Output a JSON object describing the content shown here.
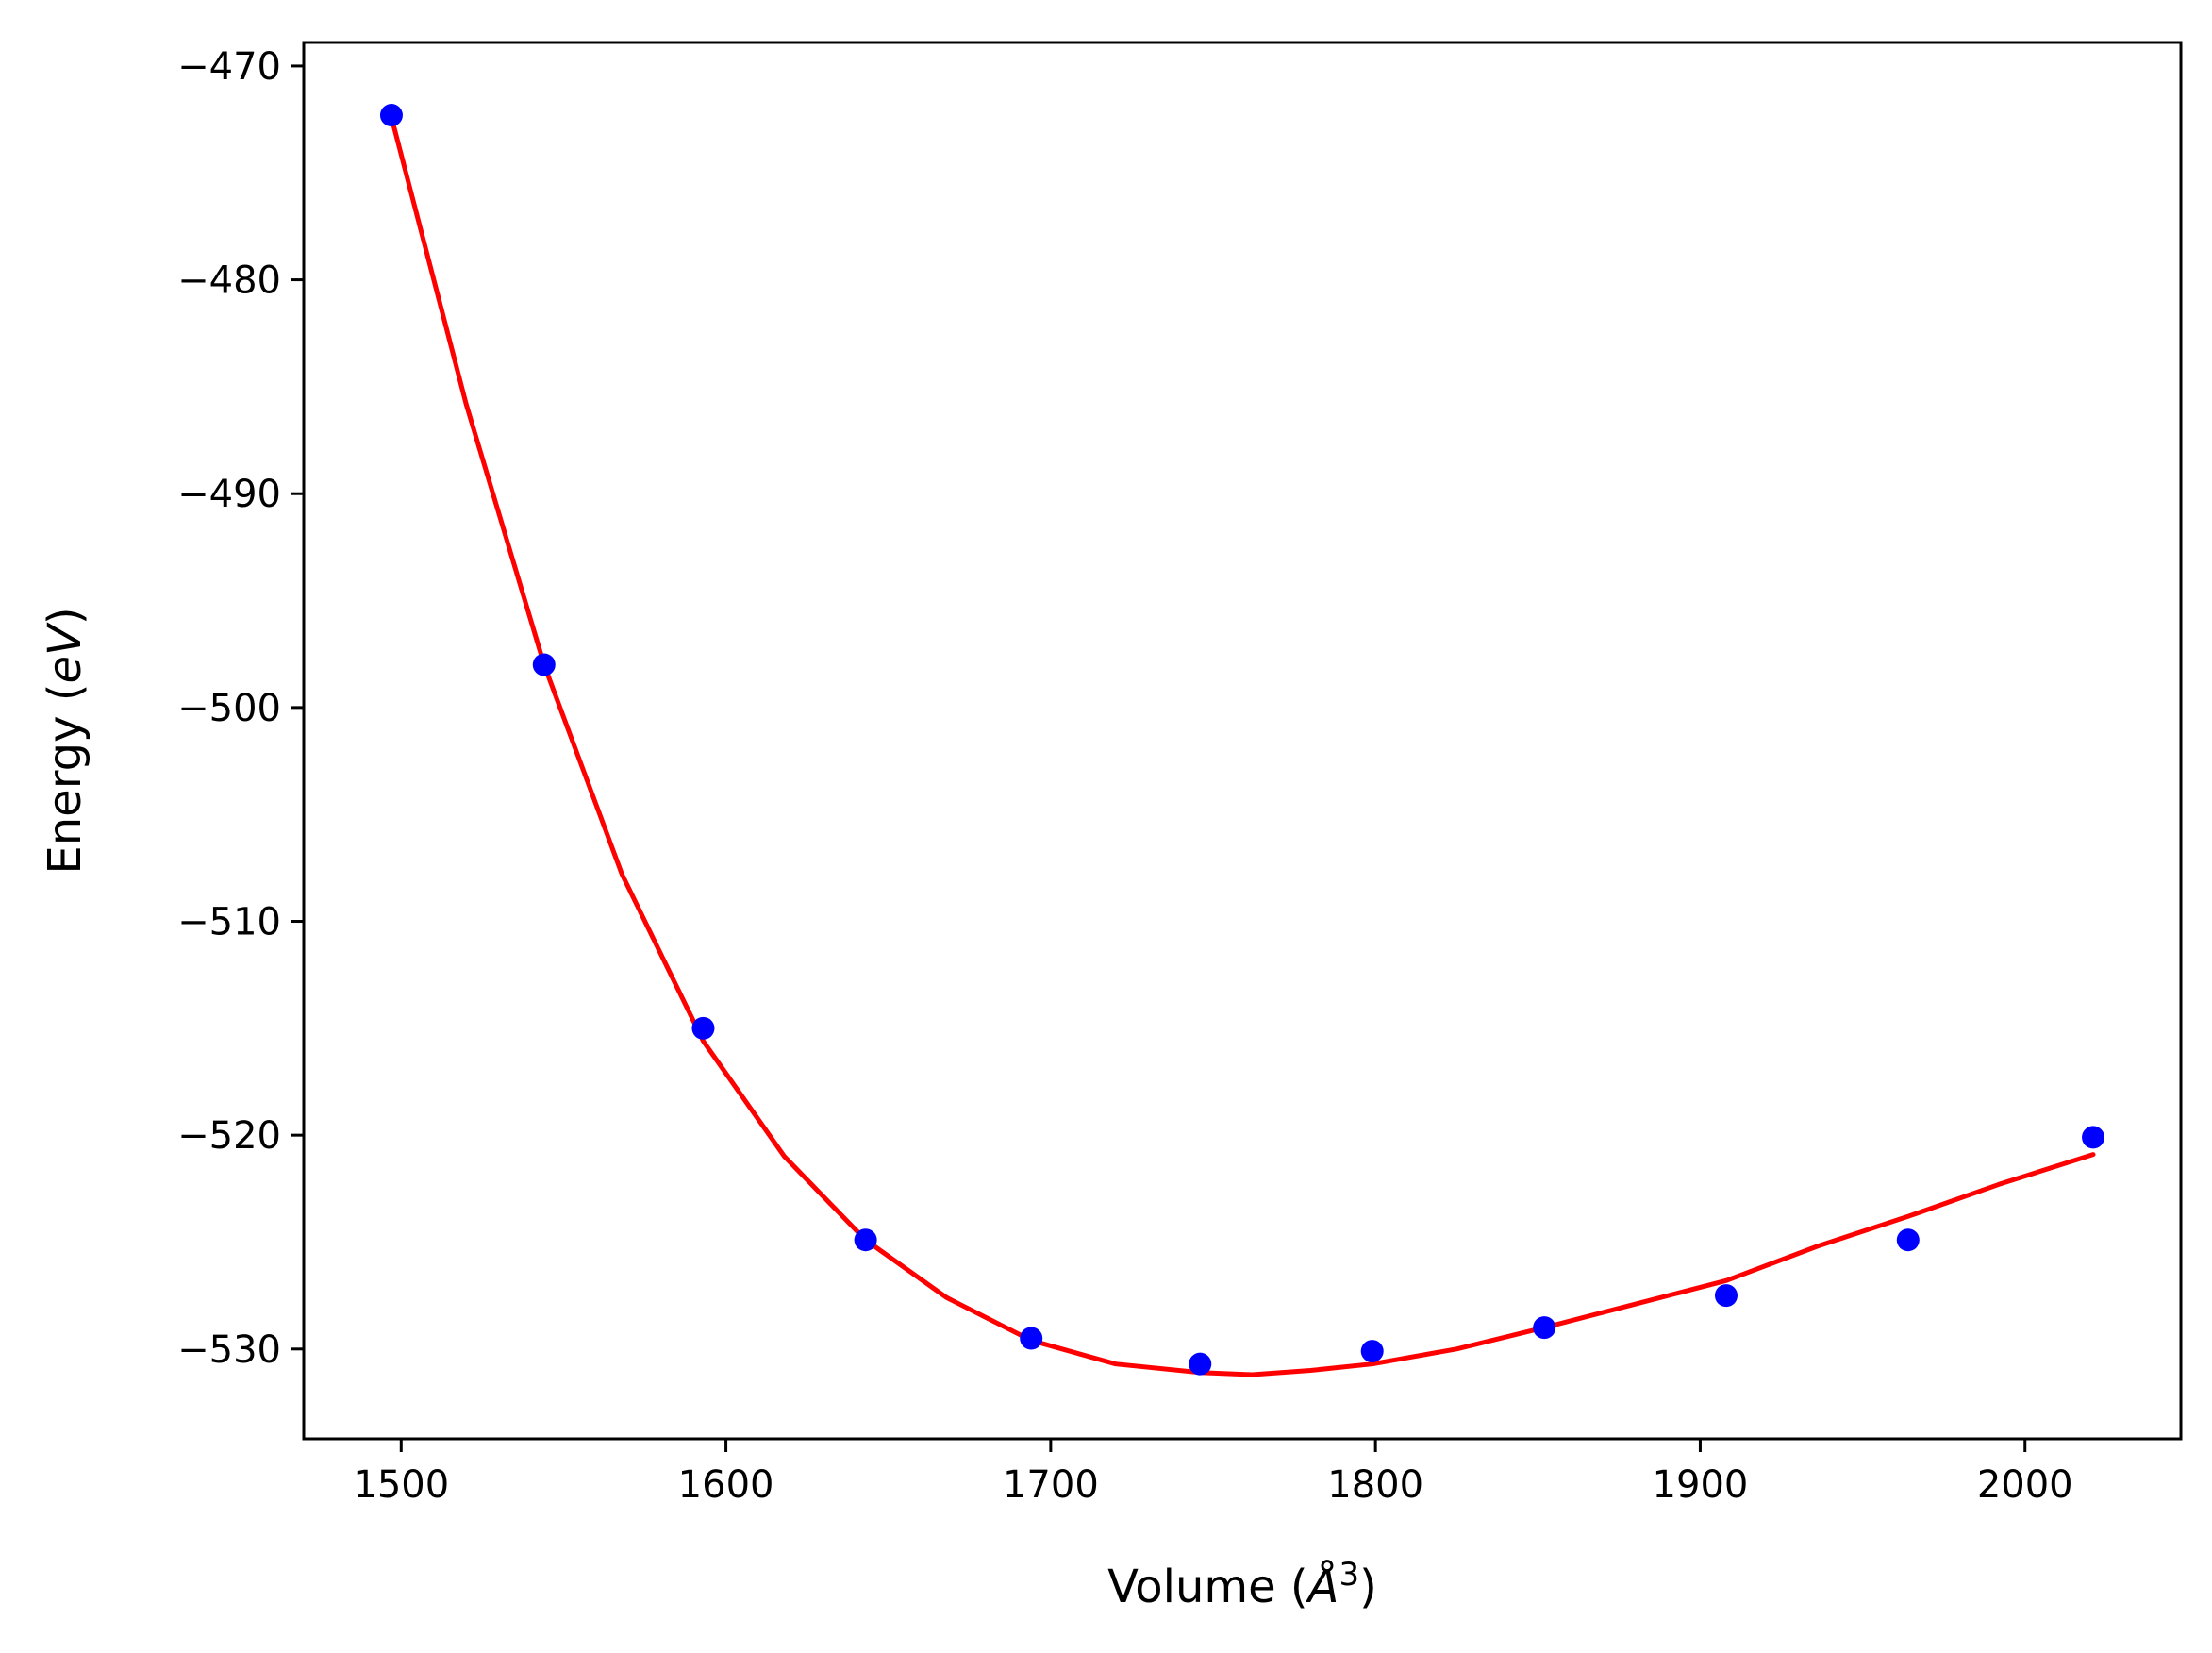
{
  "chart_data": {
    "type": "scatter",
    "title": "",
    "xlabel": "Volume (",
    "xlabel_italic": "Å",
    "xlabel_sup": "3",
    "xlabel_end": ")",
    "ylabel": "Energy (",
    "ylabel_italic": "eV",
    "ylabel_end": ")",
    "xlim": [
      1470,
      2048
    ],
    "ylim": [
      -534.2,
      -468.9
    ],
    "xticks": [
      1500,
      1600,
      1700,
      1800,
      1900,
      2000
    ],
    "xtick_labels": [
      "1500",
      "1600",
      "1700",
      "1800",
      "1900",
      "2000"
    ],
    "yticks": [
      -470,
      -480,
      -490,
      -500,
      -510,
      -520,
      -530
    ],
    "ytick_labels": [
      "−470",
      "−480",
      "−490",
      "−500",
      "−510",
      "−520",
      "−530"
    ],
    "grid": false,
    "legend": "none",
    "series": [
      {
        "kind": "points",
        "color": "#0000ff",
        "x": [
          1497,
          1544,
          1593,
          1643,
          1694,
          1746,
          1799,
          1852,
          1908,
          1964,
          2021
        ],
        "y": [
          -472.3,
          -498.0,
          -515.0,
          -524.9,
          -529.5,
          -530.7,
          -530.1,
          -529.0,
          -527.5,
          -524.9,
          -520.1
        ]
      },
      {
        "kind": "fit-line",
        "color": "#ff0000",
        "x": [
          1497,
          1520,
          1544,
          1568,
          1593,
          1618,
          1643,
          1668,
          1694,
          1720,
          1746,
          1762,
          1780,
          1799,
          1825,
          1852,
          1880,
          1908,
          1936,
          1964,
          1992,
          2021
        ],
        "y": [
          -472.4,
          -485.8,
          -498.0,
          -507.8,
          -515.6,
          -521.0,
          -524.9,
          -527.6,
          -529.6,
          -530.7,
          -531.1,
          -531.2,
          -531.0,
          -530.7,
          -530.0,
          -529.0,
          -527.9,
          -526.8,
          -525.2,
          -523.8,
          -522.3,
          -520.9
        ]
      }
    ]
  }
}
